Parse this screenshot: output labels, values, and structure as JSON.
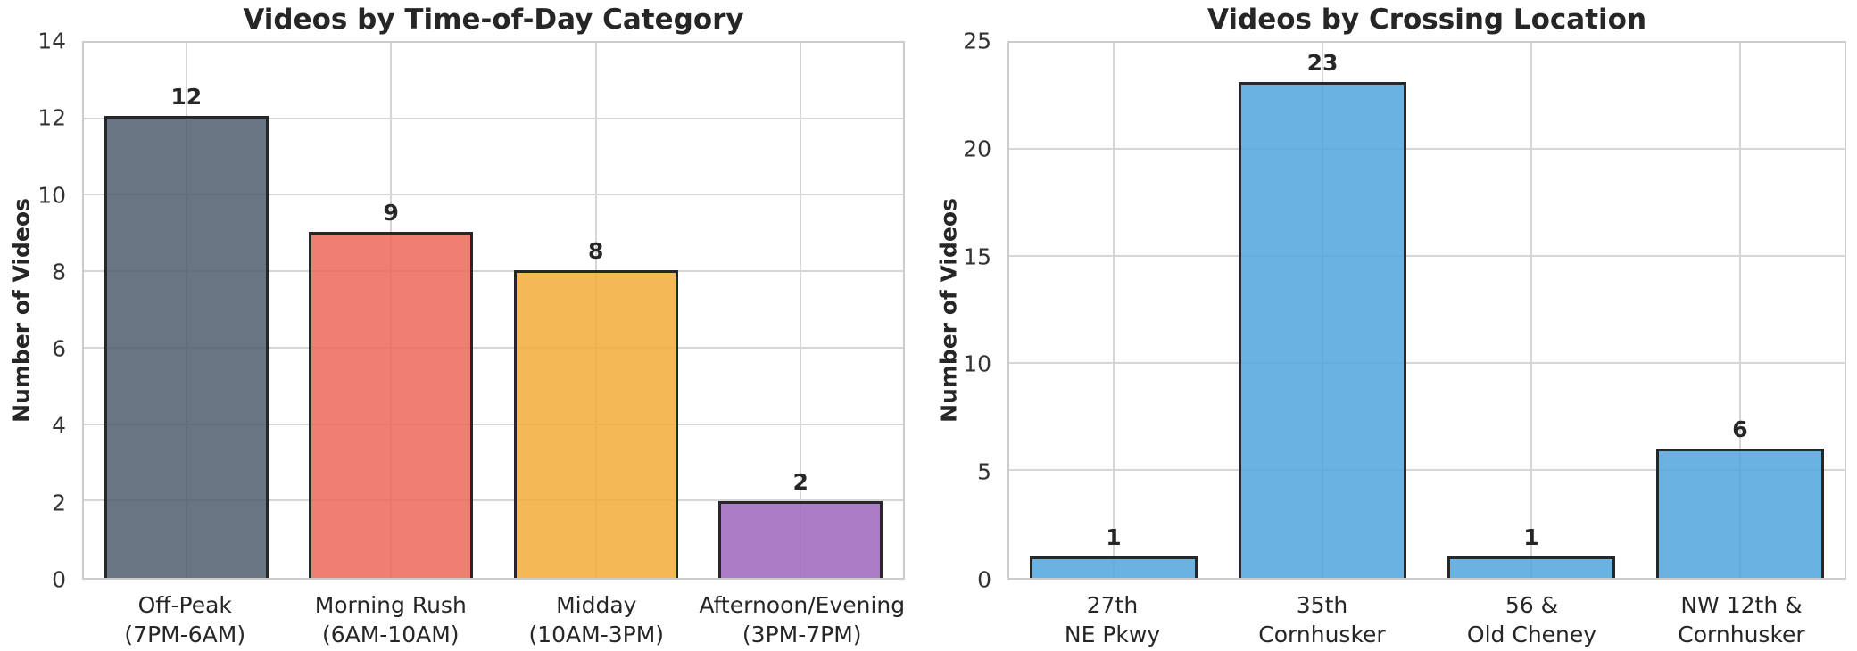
{
  "figure": {
    "background": "#ffffff",
    "grid_color": "#d6d6d6",
    "spine_color": "#cccccc",
    "text_color": "#262626",
    "bar_edge_color": "#272727",
    "bar_alpha": 0.85
  },
  "chart_data": [
    {
      "type": "bar",
      "title": "Videos by Time-of-Day Category",
      "xlabel": "",
      "ylabel": "Number of Videos",
      "ylim": [
        0,
        14
      ],
      "yticks": [
        0,
        2,
        4,
        6,
        8,
        10,
        12,
        14
      ],
      "grid": true,
      "legend": false,
      "categories": [
        "Off-Peak\n(7PM-6AM)",
        "Morning Rush\n(6AM-10AM)",
        "Midday\n(10AM-3PM)",
        "Afternoon/Evening\n(3PM-7PM)"
      ],
      "values": [
        12,
        9,
        8,
        2
      ],
      "value_labels": [
        "12",
        "9",
        "8",
        "2"
      ],
      "bar_colors": [
        "#4D5E6F",
        "#EB6859",
        "#F3AB39",
        "#9F65BC"
      ]
    },
    {
      "type": "bar",
      "title": "Videos by Crossing Location",
      "xlabel": "",
      "ylabel": "Number of Videos",
      "ylim": [
        0,
        25
      ],
      "yticks": [
        0,
        5,
        10,
        15,
        20,
        25
      ],
      "grid": true,
      "legend": false,
      "categories": [
        "27th\nNE Pkwy",
        "35th\nCornhusker",
        "56 &\nOld Cheney",
        "NW 12th &\nCornhusker"
      ],
      "values": [
        1,
        23,
        1,
        6
      ],
      "value_labels": [
        "1",
        "23",
        "1",
        "6"
      ],
      "bar_colors": [
        "#50A4DD",
        "#50A4DD",
        "#50A4DD",
        "#50A4DD"
      ]
    }
  ]
}
